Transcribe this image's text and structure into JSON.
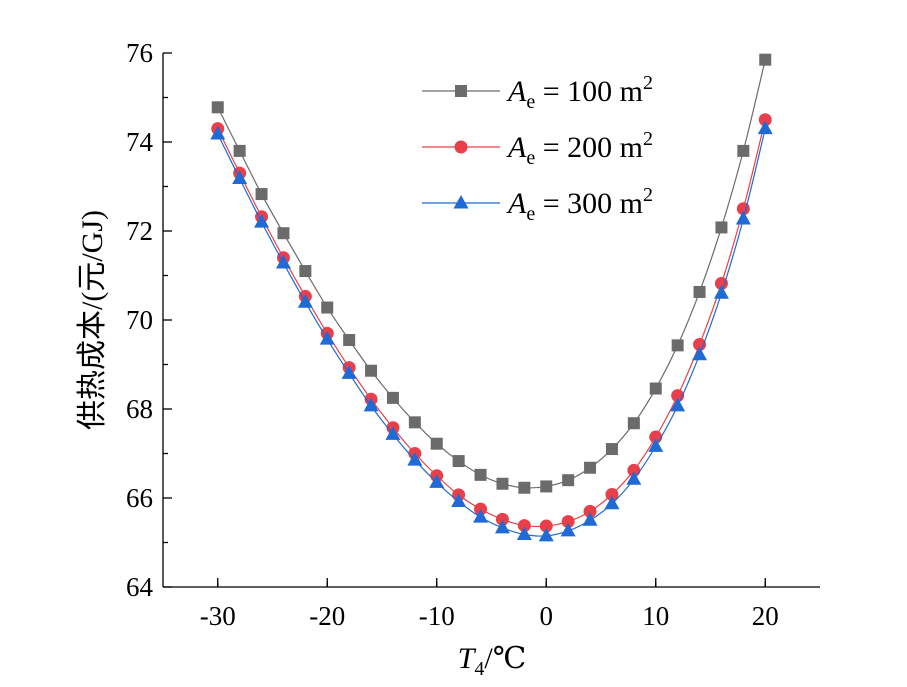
{
  "chart_data": {
    "type": "line",
    "xlabel": "T4/℃",
    "ylabel": "供热成本/(元/GJ)",
    "xlim": [
      -35,
      25
    ],
    "ylim": [
      64,
      76
    ],
    "xticks": [
      -30,
      -20,
      -10,
      0,
      10,
      20
    ],
    "yticks": [
      64,
      66,
      68,
      70,
      72,
      74,
      76
    ],
    "xtick_labels": [
      "-30",
      "-20",
      "-10",
      "0",
      "10",
      "20"
    ],
    "ytick_labels": [
      "64",
      "66",
      "68",
      "70",
      "72",
      "74",
      "76"
    ],
    "legend_position": "top-right",
    "x": [
      -30,
      -28,
      -26,
      -24,
      -22,
      -20,
      -18,
      -16,
      -14,
      -12,
      -10,
      -8,
      -6,
      -4,
      -2,
      0,
      2,
      4,
      6,
      8,
      10,
      12,
      14,
      16,
      18,
      20
    ],
    "series": [
      {
        "name": "Ae = 100 m2",
        "color": "#6b6b6b",
        "marker": "square",
        "values": [
          74.78,
          73.8,
          72.83,
          71.95,
          71.1,
          70.28,
          69.55,
          68.86,
          68.25,
          67.7,
          67.22,
          66.83,
          66.52,
          66.32,
          66.23,
          66.26,
          66.4,
          66.68,
          67.1,
          67.68,
          68.46,
          69.43,
          70.63,
          72.08,
          73.8,
          75.85
        ]
      },
      {
        "name": "Ae = 200 m2",
        "color": "#e8404a",
        "marker": "circle",
        "values": [
          74.3,
          73.3,
          72.32,
          71.4,
          70.53,
          69.7,
          68.93,
          68.22,
          67.58,
          67.0,
          66.5,
          66.07,
          65.75,
          65.52,
          65.38,
          65.37,
          65.47,
          65.7,
          66.08,
          66.62,
          67.37,
          68.3,
          69.45,
          70.82,
          72.5,
          74.5
        ]
      },
      {
        "name": "Ae = 300 m2",
        "color": "#1f6ad4",
        "marker": "triangle",
        "values": [
          74.18,
          73.18,
          72.2,
          71.28,
          70.4,
          69.57,
          68.8,
          68.07,
          67.43,
          66.85,
          66.35,
          65.92,
          65.57,
          65.33,
          65.18,
          65.15,
          65.26,
          65.5,
          65.87,
          66.42,
          67.16,
          68.07,
          69.22,
          70.6,
          72.27,
          74.3
        ]
      }
    ],
    "legend_labels": [
      {
        "var": "A",
        "sub": "e",
        "eq": " = 100 m",
        "sup": "2"
      },
      {
        "var": "A",
        "sub": "e",
        "eq": " = 200 m",
        "sup": "2"
      },
      {
        "var": "A",
        "sub": "e",
        "eq": " = 300 m",
        "sup": "2"
      }
    ],
    "xlabel_parts": {
      "var": "T",
      "sub": "4",
      "unit": "/℃"
    }
  }
}
